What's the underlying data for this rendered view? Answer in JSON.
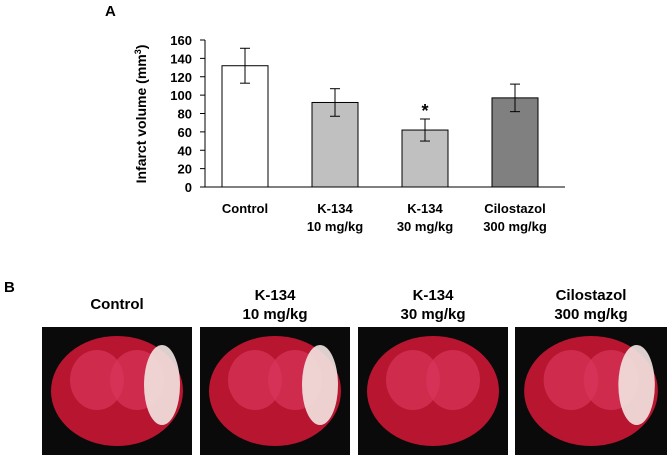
{
  "panel_a": {
    "label": "A"
  },
  "chart_data": {
    "type": "bar",
    "y_label": [
      "Infarct volume (mm",
      "3",
      ")"
    ],
    "categories": [
      [
        "Control"
      ],
      [
        "K-134",
        "10 mg/kg"
      ],
      [
        "K-134",
        "30 mg/kg"
      ],
      [
        "Cilostazol",
        "300 mg/kg"
      ]
    ],
    "values": [
      132,
      92,
      62,
      97
    ],
    "errors": [
      19,
      15,
      12,
      15
    ],
    "colors": [
      "#ffffff",
      "#c0c0c0",
      "#c0c0c0",
      "#808080"
    ],
    "annotations": [
      null,
      null,
      "*",
      null
    ],
    "ylim": [
      0,
      160
    ],
    "yticks": [
      0,
      20,
      40,
      60,
      80,
      100,
      120,
      140,
      160
    ],
    "grid": false
  },
  "panel_b": {
    "label": "B",
    "images": [
      [
        "Control"
      ],
      [
        "K-134",
        "10 mg/kg"
      ],
      [
        "K-134",
        "30 mg/kg"
      ],
      [
        "Cilostazol",
        "300 mg/kg"
      ]
    ]
  }
}
